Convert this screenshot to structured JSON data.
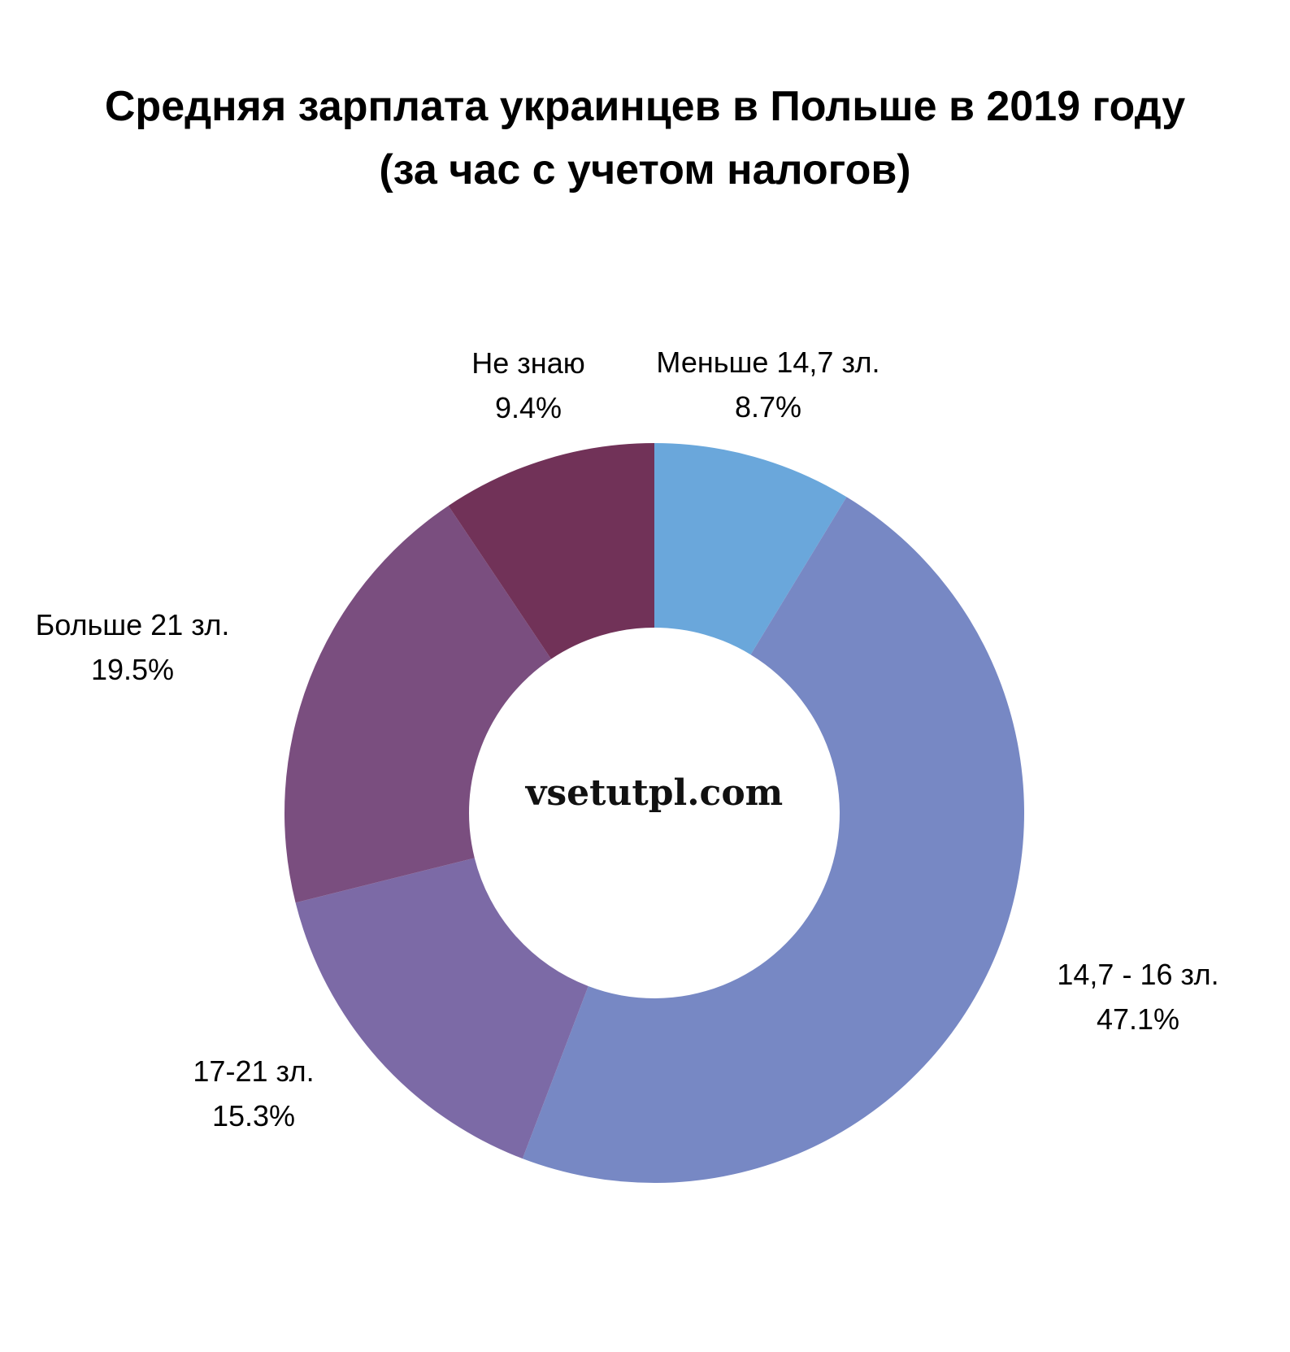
{
  "chart_data": {
    "type": "pie",
    "variant": "donut",
    "title": "Средняя зарплата украинцев в Польше в 2019 году",
    "subtitle": "(за час с учетом налогов)",
    "watermark": "vsetutpl.com",
    "slices": [
      {
        "label": "Меньше 14,7 зл.",
        "value": 8.7,
        "value_label": "8.7%",
        "color": "#6aa7db"
      },
      {
        "label": "14,7 - 16 зл.",
        "value": 47.1,
        "value_label": "47.1%",
        "color": "#7788c4"
      },
      {
        "label": "17-21 зл.",
        "value": 15.3,
        "value_label": "15.3%",
        "color": "#7c6aa6"
      },
      {
        "label": "Больше 21 зл.",
        "value": 19.5,
        "value_label": "19.5%",
        "color": "#7a4e7f"
      },
      {
        "label": "Не знаю",
        "value": 9.4,
        "value_label": "9.4%",
        "color": "#713258"
      }
    ]
  }
}
